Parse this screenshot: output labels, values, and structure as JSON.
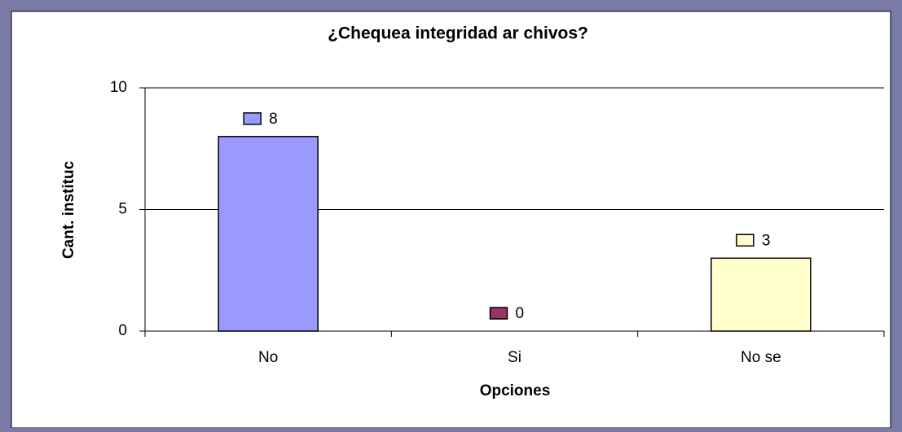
{
  "chart_data": {
    "type": "bar",
    "title": "¿Chequea integridad ar chivos?",
    "x_label": "Opciones",
    "y_label": "Cant. instituc",
    "categories": [
      "No",
      "Si",
      "No se"
    ],
    "values": [
      8,
      0,
      3
    ],
    "colors": [
      "#9999ff",
      "#993366",
      "#ffffcc"
    ],
    "ylim": [
      0,
      10
    ],
    "yticks": [
      0,
      5,
      10
    ],
    "grid": true
  }
}
